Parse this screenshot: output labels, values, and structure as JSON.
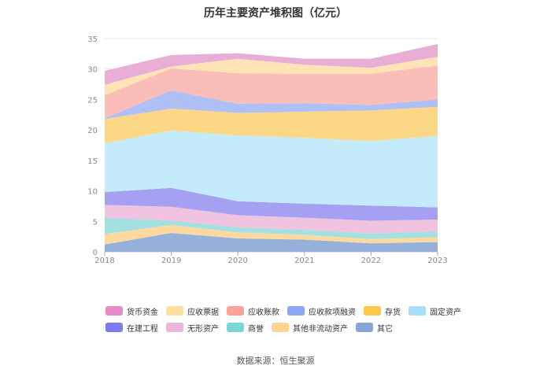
{
  "chart_data": {
    "type": "area",
    "stacked": true,
    "title": "历年主要资产堆积图（亿元）",
    "categories": [
      "2018",
      "2019",
      "2020",
      "2021",
      "2022",
      "2023"
    ],
    "ylim": [
      0,
      35
    ],
    "yticks": [
      0,
      5,
      10,
      15,
      20,
      25,
      30,
      35
    ],
    "grid": true,
    "legend_position": "bottom",
    "series": [
      {
        "name": "其它",
        "color": "#95b0db",
        "values": [
          1.2,
          3.1,
          2.2,
          2.0,
          1.4,
          1.6
        ]
      },
      {
        "name": "其他非流动资产",
        "color": "#fdd9a0",
        "values": [
          1.7,
          1.3,
          1.0,
          0.8,
          0.7,
          0.8
        ]
      },
      {
        "name": "商誉",
        "color": "#a3e0e0",
        "values": [
          2.7,
          0.7,
          0.8,
          0.8,
          0.9,
          0.9
        ]
      },
      {
        "name": "无形资产",
        "color": "#f0c3e0",
        "values": [
          2.1,
          2.3,
          2.0,
          2.0,
          2.1,
          2.0
        ]
      },
      {
        "name": "在建工程",
        "color": "#a5a0f2",
        "values": [
          2.1,
          3.1,
          2.3,
          2.3,
          2.5,
          2.0
        ]
      },
      {
        "name": "固定资产",
        "color": "#c4ebfb",
        "values": [
          8.0,
          9.4,
          10.8,
          10.8,
          10.6,
          11.7
        ]
      },
      {
        "name": "存货",
        "color": "#fcd886",
        "values": [
          4.0,
          3.6,
          3.7,
          4.3,
          5.0,
          4.8
        ]
      },
      {
        "name": "应收款项融资",
        "color": "#aec0f5",
        "values": [
          0.1,
          3.0,
          1.5,
          1.4,
          0.9,
          1.2
        ]
      },
      {
        "name": "应收账款",
        "color": "#fbbdb8",
        "values": [
          3.8,
          3.6,
          5.0,
          4.8,
          5.1,
          5.6
        ]
      },
      {
        "name": "应收票据",
        "color": "#fde3b6",
        "values": [
          1.7,
          0.3,
          2.4,
          1.5,
          1.0,
          1.4
        ]
      },
      {
        "name": "货币资金",
        "color": "#e9aed6",
        "values": [
          2.3,
          1.9,
          0.9,
          1.0,
          1.5,
          2.1
        ]
      }
    ],
    "legend": [
      {
        "name": "货币资金",
        "color": "#e78cc7"
      },
      {
        "name": "应收票据",
        "color": "#fde0a0"
      },
      {
        "name": "应收账款",
        "color": "#fba39a"
      },
      {
        "name": "应收款项融资",
        "color": "#8ea6f7"
      },
      {
        "name": "存货",
        "color": "#fcc84b"
      },
      {
        "name": "固定资产",
        "color": "#a7defa"
      },
      {
        "name": "在建工程",
        "color": "#7d7bef"
      },
      {
        "name": "无形资产",
        "color": "#ecb6da"
      },
      {
        "name": "商誉",
        "color": "#7ad6d3"
      },
      {
        "name": "其他非流动资产",
        "color": "#fcd38f"
      },
      {
        "name": "其它",
        "color": "#8aa4d6"
      }
    ]
  },
  "footer": {
    "source": "数据来源：恒生聚源"
  }
}
